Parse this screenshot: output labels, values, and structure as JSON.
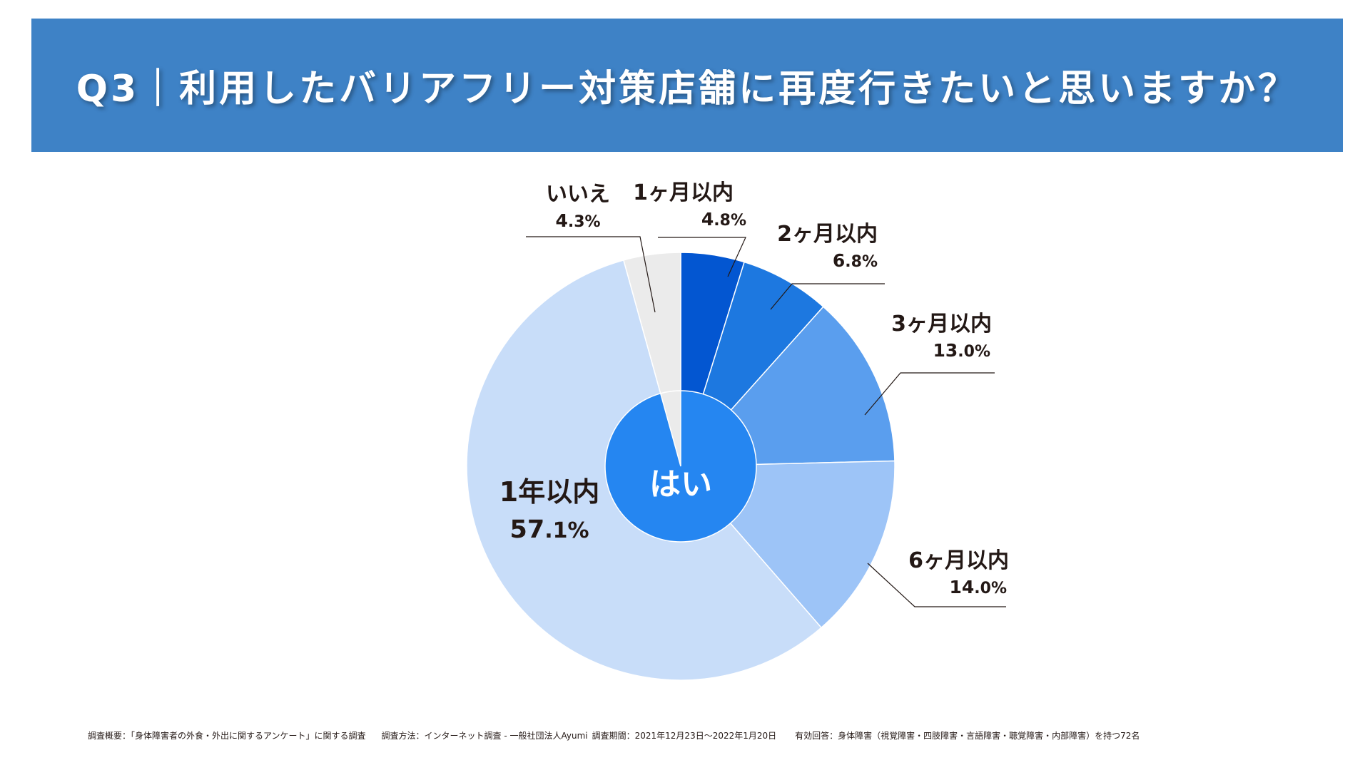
{
  "header": {
    "title": "Q3｜利用したバリアフリー対策店舗に再度行きたいと思いますか？"
  },
  "chart_data": {
    "type": "pie",
    "title": "Q3｜利用したバリアフリー対策店舗に再度行きたいと思いますか？",
    "center_label": "はい",
    "unit": "%",
    "slices": [
      {
        "label": "1ヶ月以内",
        "value": 4.8,
        "value_text": "4.8",
        "color": "#0356d1",
        "group": "はい"
      },
      {
        "label": "2ヶ月以内",
        "value": 6.8,
        "value_text": "6.8",
        "color": "#1d78e0",
        "group": "はい"
      },
      {
        "label": "3ヶ月以内",
        "value": 13.0,
        "value_text": "13.0",
        "color": "#5a9eee",
        "group": "はい"
      },
      {
        "label": "6ヶ月以内",
        "value": 14.0,
        "value_text": "14.0",
        "color": "#9dc4f7",
        "group": "はい"
      },
      {
        "label": "1年以内",
        "value": 57.1,
        "value_text": "57.1",
        "color": "#c8ddf9",
        "group": "はい"
      },
      {
        "label": "いいえ",
        "value": 4.3,
        "value_text": "4.3",
        "color": "#ebebeb",
        "group": "いいえ"
      }
    ],
    "inner_color": "#2586f1"
  },
  "footer": {
    "overview": "調査概要：「身体障害者の外食・外出に関するアンケート」に関する調査",
    "method": "調査方法：インターネット調査 - 一般社団法人Ayumi",
    "period": "調査期間：2021年12月23日〜2022年1月20日",
    "respondents": "有効回答：身体障害（視覚障害・四肢障害・言語障害・聴覚障害・内部障害）を持つ72名"
  }
}
